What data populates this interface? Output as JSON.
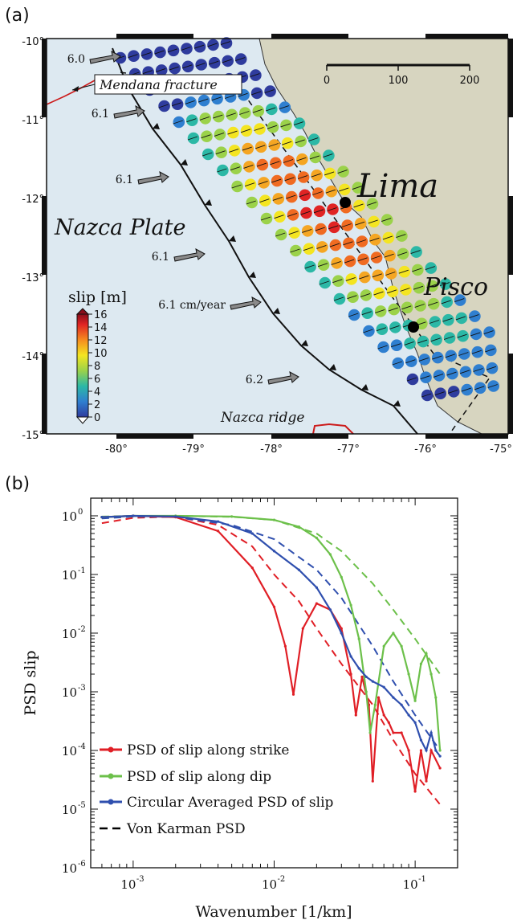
{
  "panel_a": {
    "letter": "(a)",
    "map": {
      "lat_ticks": [
        "-10°",
        "-11°",
        "-12°",
        "-13°",
        "-14°",
        "-15°"
      ],
      "lon_ticks": [
        "-80°",
        "-79°",
        "-78°",
        "-77°",
        "-76°",
        "-75°"
      ],
      "labels": {
        "nazca_plate": "Nazca Plate",
        "nazca_ridge": "Nazca ridge",
        "lima": "Lima",
        "pisco": "Pisco",
        "mendana": "Mendana fracture"
      },
      "arrows": [
        "6.0",
        "6.1",
        "6.1",
        "6.1",
        "6.1 cm/year",
        "6.2"
      ],
      "scale_bar": [
        "0",
        "100",
        "200"
      ],
      "colorbar": {
        "title": "slip [m]",
        "ticks": [
          "16",
          "14",
          "12",
          "10",
          "8",
          "6",
          "4",
          "2",
          "0"
        ]
      }
    }
  },
  "panel_b": {
    "letter": "(b)",
    "chart_data": {
      "type": "line",
      "xlabel": "Wavenumber [1/km]",
      "ylabel": "PSD slip",
      "xscale": "log",
      "yscale": "log",
      "xlim": [
        0.0005,
        0.2
      ],
      "ylim": [
        1e-06,
        2
      ],
      "x_ticks": [
        "10",
        "10",
        "10"
      ],
      "x_tick_exps": [
        "-3",
        "-2",
        "-1"
      ],
      "y_ticks": [
        "10",
        "10",
        "10",
        "10",
        "10",
        "10",
        "10"
      ],
      "y_tick_exps": [
        "0",
        "-1",
        "-2",
        "-3",
        "-4",
        "-5",
        "-6"
      ],
      "legend_position": "bottom-left",
      "series": [
        {
          "name": "PSD of slip along strike",
          "color": "#e01f26",
          "style": "solid",
          "x": [
            0.0006,
            0.001,
            0.002,
            0.004,
            0.007,
            0.01,
            0.012,
            0.0137,
            0.016,
            0.02,
            0.025,
            0.03,
            0.035,
            0.038,
            0.042,
            0.047,
            0.05,
            0.055,
            0.06,
            0.065,
            0.07,
            0.08,
            0.09,
            0.1,
            0.11,
            0.12,
            0.13,
            0.15
          ],
          "y": [
            0.95,
            1.0,
            0.95,
            0.55,
            0.13,
            0.028,
            0.006,
            0.0009,
            0.012,
            0.032,
            0.025,
            0.012,
            0.002,
            0.0004,
            0.0018,
            0.0006,
            3e-05,
            0.0008,
            0.0004,
            0.0003,
            0.0002,
            0.0002,
            0.0001,
            2e-05,
            0.0001,
            3e-05,
            0.0001,
            5e-05
          ]
        },
        {
          "name": "PSD of slip along dip",
          "color": "#6cc04a",
          "style": "solid",
          "x": [
            0.0006,
            0.001,
            0.002,
            0.005,
            0.01,
            0.015,
            0.02,
            0.025,
            0.03,
            0.035,
            0.04,
            0.045,
            0.048,
            0.052,
            0.06,
            0.07,
            0.08,
            0.09,
            0.1,
            0.11,
            0.12,
            0.13,
            0.14,
            0.15
          ],
          "y": [
            0.95,
            1.0,
            1.0,
            0.97,
            0.85,
            0.65,
            0.42,
            0.22,
            0.09,
            0.03,
            0.008,
            0.001,
            0.0002,
            0.0006,
            0.006,
            0.01,
            0.006,
            0.002,
            0.0007,
            0.003,
            0.0045,
            0.002,
            0.0008,
            0.0001
          ]
        },
        {
          "name": "Circular Averaged PSD of slip",
          "color": "#2f4fae",
          "style": "solid",
          "x": [
            0.0006,
            0.001,
            0.002,
            0.004,
            0.007,
            0.01,
            0.015,
            0.02,
            0.025,
            0.03,
            0.035,
            0.04,
            0.045,
            0.05,
            0.06,
            0.07,
            0.08,
            0.09,
            0.1,
            0.11,
            0.12,
            0.13,
            0.14,
            0.15
          ],
          "y": [
            0.95,
            1.0,
            0.97,
            0.8,
            0.5,
            0.25,
            0.12,
            0.06,
            0.025,
            0.01,
            0.004,
            0.0025,
            0.0018,
            0.0015,
            0.0012,
            0.0008,
            0.0006,
            0.0004,
            0.0003,
            0.00015,
            0.0001,
            0.0002,
            0.0001,
            8e-05
          ]
        },
        {
          "name": "Von Karman PSD",
          "color": "#000000",
          "style": "dashed",
          "x": [],
          "y": []
        }
      ],
      "von_karman_curves": [
        {
          "color": "#e01f26",
          "x": [
            0.0006,
            0.001,
            0.002,
            0.004,
            0.007,
            0.01,
            0.015,
            0.02,
            0.03,
            0.05,
            0.07,
            0.1,
            0.15
          ],
          "y": [
            0.75,
            0.92,
            0.97,
            0.7,
            0.3,
            0.1,
            0.035,
            0.012,
            0.003,
            0.0006,
            0.00015,
            4e-05,
            1.2e-05
          ]
        },
        {
          "color": "#6cc04a",
          "x": [
            0.0006,
            0.001,
            0.002,
            0.005,
            0.01,
            0.02,
            0.03,
            0.05,
            0.07,
            0.1,
            0.15
          ],
          "y": [
            0.97,
            1.0,
            1.0,
            0.96,
            0.85,
            0.5,
            0.25,
            0.07,
            0.025,
            0.008,
            0.002
          ]
        },
        {
          "color": "#2f4fae",
          "x": [
            0.0006,
            0.001,
            0.002,
            0.005,
            0.01,
            0.02,
            0.03,
            0.05,
            0.07,
            0.1,
            0.15
          ],
          "y": [
            0.9,
            0.97,
            0.95,
            0.7,
            0.4,
            0.12,
            0.04,
            0.006,
            0.0015,
            0.0004,
            0.0001
          ]
        }
      ]
    }
  }
}
